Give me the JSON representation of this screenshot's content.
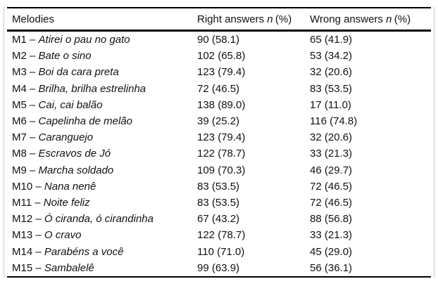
{
  "table": {
    "header": {
      "melodies": "Melodies",
      "right": {
        "prefix": "Right answers",
        "n": "n",
        "suffix": "(%)"
      },
      "wrong": {
        "prefix": "Wrong answers",
        "n": "n",
        "suffix": "(%)"
      }
    },
    "rows": [
      {
        "prefix": "M1 –",
        "name": "Atirei o pau no gato",
        "right": "90 (58.1)",
        "wrong": "65 (41.9)"
      },
      {
        "prefix": "M2 –",
        "name": "Bate o sino",
        "right": "102 (65.8)",
        "wrong": "53 (34.2)"
      },
      {
        "prefix": "M3 –",
        "name": "Boi da cara preta",
        "right": "123 (79.4)",
        "wrong": "32 (20.6)"
      },
      {
        "prefix": "M4 –",
        "name": "Brilha, brilha estrelinha",
        "right": "72 (46.5)",
        "wrong": "83 (53.5)"
      },
      {
        "prefix": "M5 –",
        "name": "Cai, cai balão",
        "right": "138 (89.0)",
        "wrong": "17 (11.0)"
      },
      {
        "prefix": "M6 –",
        "name": "Capelinha de melão",
        "right": "39 (25.2)",
        "wrong": "116 (74.8)"
      },
      {
        "prefix": "M7 –",
        "name": "Caranguejo",
        "right": "123 (79.4)",
        "wrong": "32 (20.6)"
      },
      {
        "prefix": "M8 –",
        "name": "Escravos de Jó",
        "right": "122 (78.7)",
        "wrong": "33 (21.3)"
      },
      {
        "prefix": "M9 –",
        "name": "Marcha soldado",
        "right": "109 (70.3)",
        "wrong": "46 (29.7)"
      },
      {
        "prefix": "M10 –",
        "name": "Nana nenê",
        "right": "83 (53.5)",
        "wrong": "72 (46.5)"
      },
      {
        "prefix": "M11 –",
        "name": "Noite feliz",
        "right": "83 (53.5)",
        "wrong": "72 (46.5)"
      },
      {
        "prefix": "M12 –",
        "name": "Ó ciranda, ó cirandinha",
        "right": "67 (43.2)",
        "wrong": "88 (56.8)"
      },
      {
        "prefix": "M13 –",
        "name": "O cravo",
        "right": "122 (78.7)",
        "wrong": "33 (21.3)"
      },
      {
        "prefix": "M14 –",
        "name": "Parabéns a você",
        "right": "110 (71.0)",
        "wrong": "45 (29.0)"
      },
      {
        "prefix": "M15 –",
        "name": "Sambalelê",
        "right": "99 (63.9)",
        "wrong": "56 (36.1)"
      }
    ]
  },
  "colors": {
    "rule": "#000000",
    "text": "#111111",
    "frame_border": "#c9c9c9",
    "background": "#ffffff"
  }
}
